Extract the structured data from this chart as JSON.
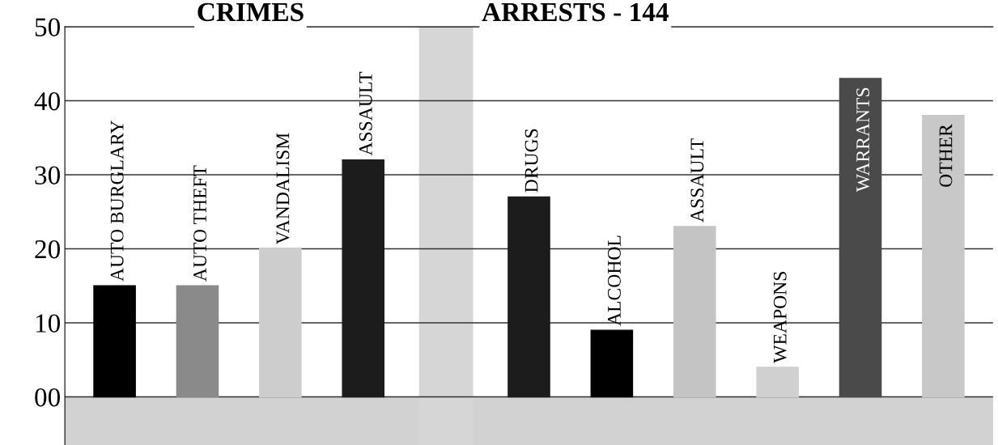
{
  "chart_data": {
    "type": "bar",
    "annotations": [
      "CRIMES",
      "ARRESTS - 144"
    ],
    "categories": [
      "AUTO BURGLARY",
      "AUTO THEFT",
      "VANDALISM",
      "ASSAULT",
      null,
      "DRUGS",
      "ALCOHOL",
      "ASSAULT",
      "WEAPONS",
      "WARRANTS",
      "OTHER"
    ],
    "values": [
      15,
      15,
      20,
      32,
      null,
      27,
      9,
      23,
      4,
      43,
      38
    ],
    "colors": [
      "#000000",
      "#8a8a8a",
      "#cdcdcd",
      "#1c1c1c",
      null,
      "#1c1c1c",
      "#000000",
      "#c4c4c4",
      "#d0d0d0",
      "#4a4a4a",
      "#c8c8c8"
    ],
    "ylim": [
      -6.5,
      50
    ],
    "yticks": [
      {
        "value": 0,
        "label": "00"
      },
      10,
      20,
      30,
      40,
      50
    ],
    "grid": "y",
    "tick_labels": "y"
  }
}
